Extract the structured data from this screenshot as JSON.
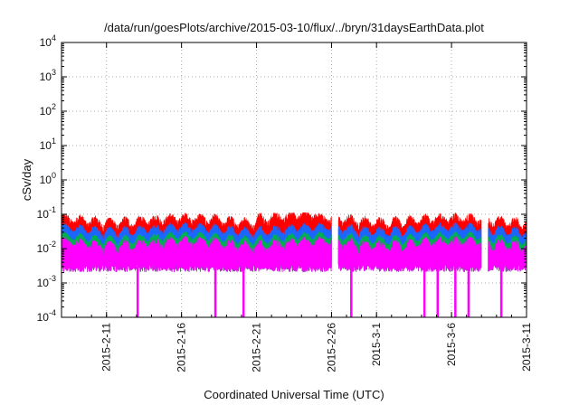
{
  "chart_data": {
    "type": "line",
    "title": "/data/run/goesPlots/archive/2015-03-10/flux/../bryn/31daysEarthData.plot",
    "xlabel": "Coordinated Universal Time (UTC)",
    "ylabel": "cSv/day",
    "yscale": "log",
    "ylim": [
      0.0001,
      10000
    ],
    "xlim": [
      "2015-02-08",
      "2015-03-11"
    ],
    "y_ticks": [
      {
        "base": "10",
        "exp": "4"
      },
      {
        "base": "10",
        "exp": "3"
      },
      {
        "base": "10",
        "exp": "2"
      },
      {
        "base": "10",
        "exp": "1"
      },
      {
        "base": "10",
        "exp": "0"
      },
      {
        "base": "10",
        "exp": "-1"
      },
      {
        "base": "10",
        "exp": "-2"
      },
      {
        "base": "10",
        "exp": "-3"
      },
      {
        "base": "10",
        "exp": "-4"
      }
    ],
    "x_ticks": [
      "2015-2-11",
      "2015-2-16",
      "2015-2-21",
      "2015-2-26",
      "2015-3-1",
      "2015-3-6",
      "2015-3-11"
    ],
    "grid": true,
    "colors": {
      "red": "#ff0000",
      "blue": "#1a66ff",
      "green": "#00b050",
      "magenta": "#ff00ff"
    },
    "series": [
      {
        "color": "red",
        "typical": 0.06,
        "peak": 0.11
      },
      {
        "color": "blue",
        "typical": 0.035
      },
      {
        "color": "green",
        "typical": 0.02
      },
      {
        "color": "magenta",
        "typical": 0.01,
        "floor": 0.003
      }
    ],
    "data_gaps": [
      {
        "start": "2015-02-26",
        "end": "2015-02-26"
      },
      {
        "start": "2015-03-08",
        "end": "2015-03-08"
      }
    ],
    "magenta_dropouts": [
      "2015-02-13",
      "2015-02-18",
      "2015-02-20",
      "2015-02-27",
      "2015-03-04",
      "2015-03-05",
      "2015-03-06",
      "2015-03-07",
      "2015-03-09"
    ]
  }
}
